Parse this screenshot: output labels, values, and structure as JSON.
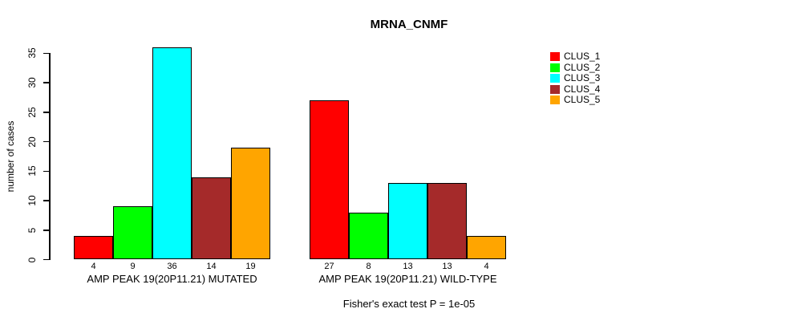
{
  "chart_data": {
    "type": "bar",
    "title": "MRNA_CNMF",
    "ylabel": "number of cases",
    "xlabel": "",
    "annotation": "Fisher's exact test P = 1e-05",
    "categories": [
      "AMP PEAK 19(20P11.21) MUTATED",
      "AMP PEAK 19(20P11.21) WILD-TYPE"
    ],
    "series": [
      {
        "name": "CLUS_1",
        "color": "#ff0000",
        "values": [
          4,
          27
        ]
      },
      {
        "name": "CLUS_2",
        "color": "#00ff00",
        "values": [
          9,
          8
        ]
      },
      {
        "name": "CLUS_3",
        "color": "#00ffff",
        "values": [
          36,
          13
        ]
      },
      {
        "name": "CLUS_4",
        "color": "#a52a2a",
        "values": [
          14,
          13
        ]
      },
      {
        "name": "CLUS_5",
        "color": "#ffa500",
        "values": [
          19,
          4
        ]
      }
    ],
    "yticks": [
      0,
      5,
      10,
      15,
      20,
      25,
      30,
      35
    ],
    "ylim": [
      0,
      36
    ],
    "grid": false,
    "legend_position": "right",
    "bar_value_labels": true,
    "axis_color": "#000000",
    "background_color": "#ffffff"
  }
}
